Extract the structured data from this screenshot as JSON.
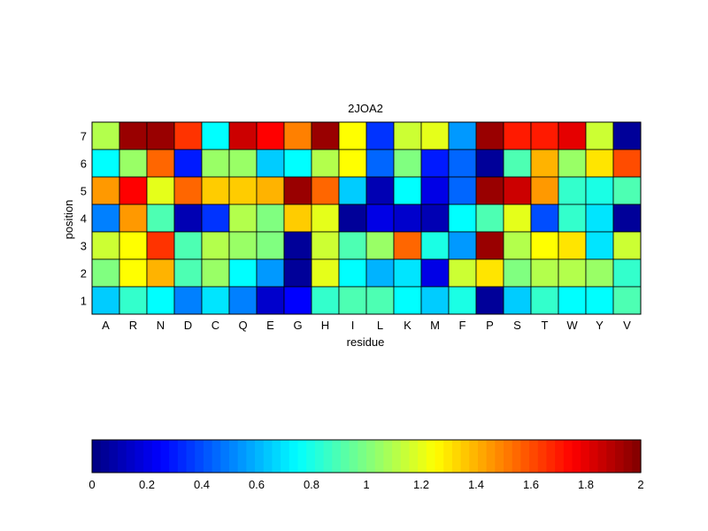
{
  "chart_data": {
    "type": "heatmap",
    "title": "2JOA2",
    "xlabel": "residue",
    "ylabel": "position",
    "x_categories": [
      "A",
      "R",
      "N",
      "D",
      "C",
      "Q",
      "E",
      "G",
      "H",
      "I",
      "L",
      "K",
      "M",
      "F",
      "P",
      "S",
      "T",
      "W",
      "Y",
      "V"
    ],
    "y_categories": [
      "1",
      "2",
      "3",
      "4",
      "5",
      "6",
      "7"
    ],
    "rows": [
      {
        "position": "7",
        "values": [
          1.1,
          1.95,
          1.95,
          1.65,
          0.75,
          1.85,
          1.75,
          1.5,
          1.95,
          1.25,
          0.35,
          1.15,
          1.2,
          0.55,
          1.95,
          1.7,
          1.7,
          1.8,
          1.15,
          0.05
        ]
      },
      {
        "position": "6",
        "values": [
          0.75,
          1.05,
          1.55,
          0.3,
          1.05,
          1.05,
          0.65,
          0.75,
          1.1,
          1.25,
          0.45,
          1.0,
          0.3,
          0.45,
          0.05,
          0.9,
          1.4,
          1.05,
          1.3,
          1.6
        ]
      },
      {
        "position": "5",
        "values": [
          1.45,
          1.75,
          1.2,
          1.55,
          1.35,
          1.35,
          1.4,
          1.95,
          1.55,
          0.65,
          0.1,
          0.75,
          0.2,
          0.45,
          1.95,
          1.85,
          1.45,
          0.85,
          0.8,
          0.9
        ]
      },
      {
        "position": "4",
        "values": [
          0.5,
          1.45,
          0.9,
          0.1,
          0.35,
          1.1,
          1.0,
          1.35,
          1.2,
          0.05,
          0.2,
          0.15,
          0.1,
          0.75,
          0.9,
          1.2,
          0.4,
          0.85,
          0.7,
          0.05
        ]
      },
      {
        "position": "3",
        "values": [
          1.15,
          1.25,
          1.65,
          0.9,
          1.1,
          1.05,
          1.0,
          0.05,
          1.15,
          0.9,
          1.05,
          1.55,
          0.8,
          0.55,
          1.95,
          1.1,
          1.25,
          1.3,
          0.7,
          1.15
        ]
      },
      {
        "position": "2",
        "values": [
          1.0,
          1.25,
          1.4,
          0.9,
          1.05,
          0.75,
          0.55,
          0.05,
          1.2,
          0.75,
          0.6,
          0.7,
          0.2,
          1.15,
          1.3,
          1.0,
          1.1,
          1.1,
          1.05,
          0.85
        ]
      },
      {
        "position": "1",
        "values": [
          0.65,
          0.85,
          0.75,
          0.5,
          0.7,
          0.5,
          0.15,
          0.25,
          0.85,
          0.9,
          0.9,
          0.75,
          0.65,
          0.8,
          0.05,
          0.65,
          0.85,
          0.75,
          0.75,
          0.9
        ]
      }
    ],
    "colormap": "jet",
    "colorbar": {
      "range": [
        0,
        2
      ],
      "ticks": [
        "0",
        "0.2",
        "0.4",
        "0.6",
        "0.8",
        "1",
        "1.2",
        "1.4",
        "1.6",
        "1.8",
        "2"
      ]
    }
  }
}
